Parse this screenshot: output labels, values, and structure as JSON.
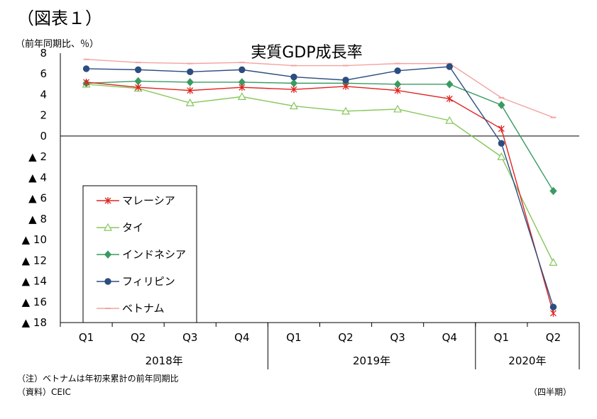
{
  "figure_label": "（図表１）",
  "unit_label": "（前年同期比、％）",
  "note": "（注）ベトナムは年初来累計の前年同期比",
  "source": "（資料）CEIC",
  "period_label": "（四半期）",
  "chart_data": {
    "type": "line",
    "title": "実質GDP成長率",
    "categories": [
      "Q1",
      "Q2",
      "Q3",
      "Q4",
      "Q1",
      "Q2",
      "Q3",
      "Q4",
      "Q1",
      "Q2"
    ],
    "year_groups": [
      {
        "label": "2018年",
        "start": 0,
        "end": 3
      },
      {
        "label": "2019年",
        "start": 4,
        "end": 7
      },
      {
        "label": "2020年",
        "start": 8,
        "end": 9
      }
    ],
    "ylim": [
      -18,
      8
    ],
    "yticks": [
      8,
      6,
      4,
      2,
      0,
      -2,
      -4,
      -6,
      -8,
      -10,
      -12,
      -14,
      -16,
      -18
    ],
    "ytick_labels": [
      "8",
      "6",
      "4",
      "2",
      "0",
      "▲ 2",
      "▲ 4",
      "▲ 6",
      "▲ 8",
      "▲ 10",
      "▲ 12",
      "▲ 14",
      "▲ 16",
      "▲ 18"
    ],
    "legend_position": "lower-left",
    "series": [
      {
        "name": "マレーシア",
        "color": "#e0241e",
        "marker": "asterisk",
        "values": [
          5.2,
          4.7,
          4.4,
          4.7,
          4.5,
          4.8,
          4.4,
          3.6,
          0.7,
          -17.1
        ]
      },
      {
        "name": "タイ",
        "color": "#86c75a",
        "marker": "triangle-open",
        "values": [
          5.0,
          4.6,
          3.2,
          3.8,
          2.9,
          2.4,
          2.6,
          1.5,
          -2.0,
          -12.2
        ]
      },
      {
        "name": "インドネシア",
        "color": "#3a9b62",
        "marker": "diamond",
        "values": [
          5.1,
          5.3,
          5.2,
          5.2,
          5.1,
          5.1,
          5.0,
          5.0,
          3.0,
          -5.3
        ]
      },
      {
        "name": "フィリピン",
        "color": "#2c4d80",
        "marker": "circle",
        "values": [
          6.5,
          6.4,
          6.2,
          6.4,
          5.7,
          5.4,
          6.3,
          6.7,
          -0.7,
          -16.5
        ]
      },
      {
        "name": "ベトナム",
        "color": "#f2a4a0",
        "marker": "dash",
        "values": [
          7.4,
          7.1,
          7.0,
          7.1,
          6.8,
          6.8,
          7.0,
          7.0,
          3.7,
          1.8
        ]
      }
    ]
  }
}
